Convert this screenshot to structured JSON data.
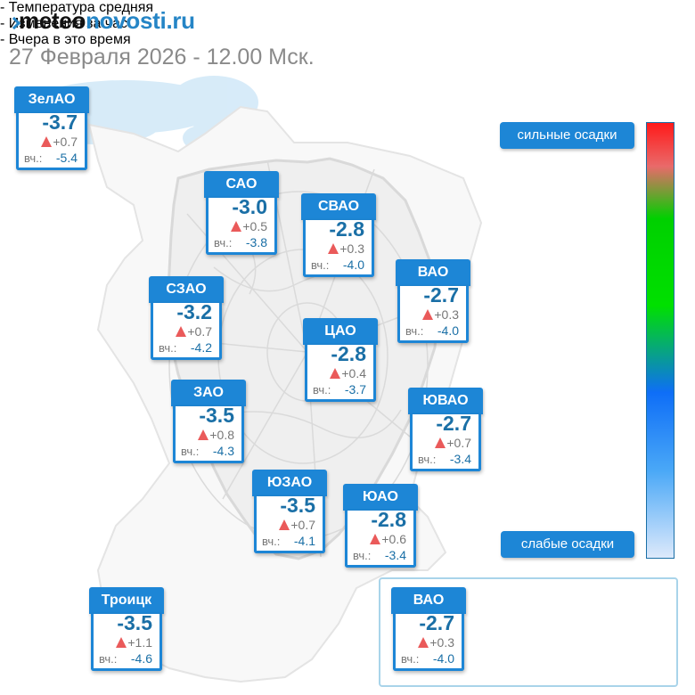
{
  "header": {
    "logo_part1": "meteo",
    "logo_part2": "novosti.ru",
    "datetime": "27 Февраля 2026 - 12.00 Мск."
  },
  "labels": {
    "yesterday_prefix": "вч.:"
  },
  "districts": [
    {
      "name": "ЗелАО",
      "temp": "-3.7",
      "change": "+0.7",
      "yesterday": "-5.4"
    },
    {
      "name": "САО",
      "temp": "-3.0",
      "change": "+0.5",
      "yesterday": "-3.8"
    },
    {
      "name": "СВАО",
      "temp": "-2.8",
      "change": "+0.3",
      "yesterday": "-4.0"
    },
    {
      "name": "ВАО",
      "temp": "-2.7",
      "change": "+0.3",
      "yesterday": "-4.0"
    },
    {
      "name": "СЗАО",
      "temp": "-3.2",
      "change": "+0.7",
      "yesterday": "-4.2"
    },
    {
      "name": "ЦАО",
      "temp": "-2.8",
      "change": "+0.4",
      "yesterday": "-3.7"
    },
    {
      "name": "ЗАО",
      "temp": "-3.5",
      "change": "+0.8",
      "yesterday": "-4.3"
    },
    {
      "name": "ЮВАО",
      "temp": "-2.7",
      "change": "+0.7",
      "yesterday": "-3.4"
    },
    {
      "name": "ЮЗАО",
      "temp": "-3.5",
      "change": "+0.7",
      "yesterday": "-4.1"
    },
    {
      "name": "ЮАО",
      "temp": "-2.8",
      "change": "+0.6",
      "yesterday": "-3.4"
    },
    {
      "name": "Троицк",
      "temp": "-3.5",
      "change": "+1.1",
      "yesterday": "-4.6"
    }
  ],
  "scale": {
    "top_label": "сильные осадки",
    "bottom_label": "слабые осадки"
  },
  "legend": {
    "example": {
      "name": "ВАО",
      "temp": "-2.7",
      "change": "+0.3",
      "yesterday": "-4.0"
    },
    "line1": "- Температура средняя",
    "line2": "- Изменения за час",
    "line3": "- Вчера в это время"
  },
  "colors": {
    "accent": "#1d86d6",
    "temp_text": "#1a6fa6",
    "increase_arrow": "#ea5a5a",
    "precip_light": "#c9e3f7"
  },
  "icons": {
    "change": "red-up-triangle-icon",
    "logo": "chevron-right-logo-mark"
  }
}
